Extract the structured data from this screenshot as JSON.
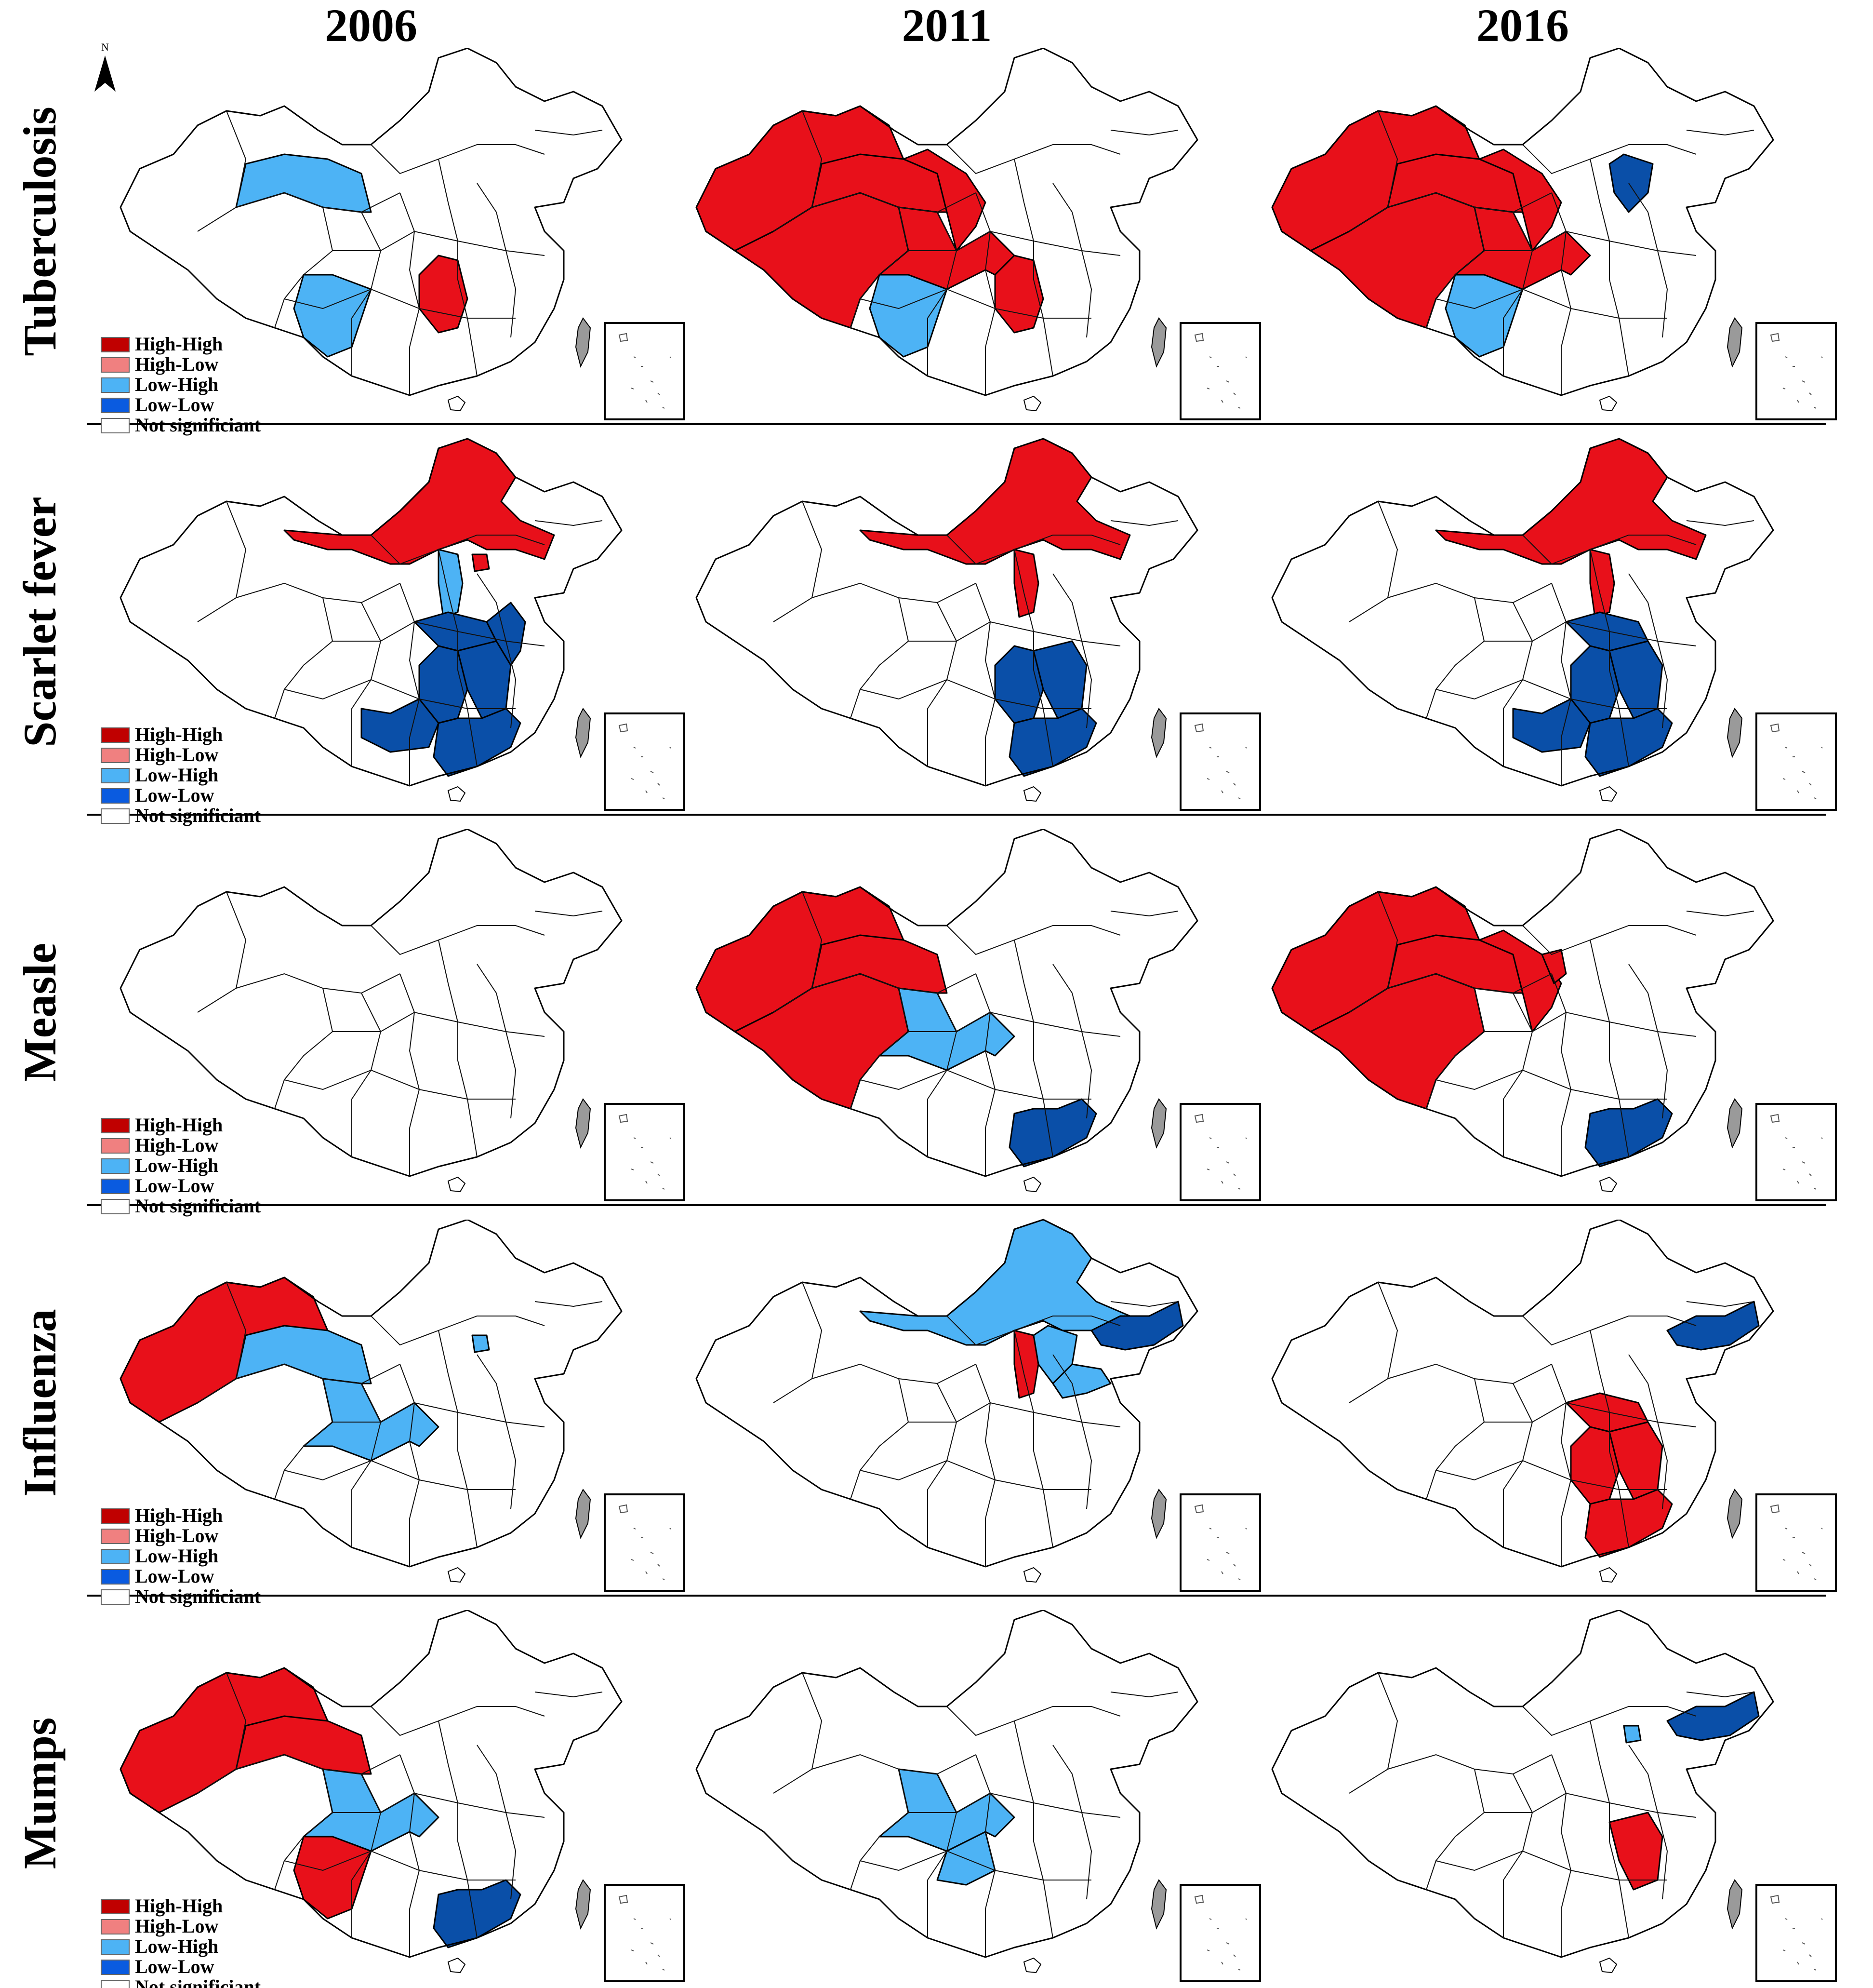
{
  "years": [
    "2006",
    "2011",
    "2016"
  ],
  "diseases": [
    "Tuberculosis",
    "Scarlet fever",
    "Measle",
    "Influenza",
    "Mumps"
  ],
  "north_arrow": "N",
  "legend": [
    {
      "label": "High-High",
      "color": "#c00000"
    },
    {
      "label": "High-Low",
      "color": "#f08080"
    },
    {
      "label": "Low-High",
      "color": "#4db3f5"
    },
    {
      "label": "Low-Low",
      "color": "#0a5be0"
    },
    {
      "label": "Not significiant",
      "color": "#ffffff"
    }
  ],
  "map_colors": {
    "hh": "#e8101a",
    "lh": "#4db3f5",
    "ll": "#0a4fa8",
    "taiwan": "#9a9a9a"
  },
  "clusters": [
    [
      [
        {
          "province": "Qinghai",
          "class": "lh"
        },
        {
          "province": "Yunnan",
          "class": "lh"
        },
        {
          "province": "Hunan",
          "class": "hh"
        }
      ],
      [
        {
          "province": "Xinjiang",
          "class": "hh"
        },
        {
          "province": "Tibet",
          "class": "hh"
        },
        {
          "province": "Qinghai",
          "class": "hh"
        },
        {
          "province": "Gansu",
          "class": "hh"
        },
        {
          "province": "Sichuan",
          "class": "hh"
        },
        {
          "province": "Yunnan",
          "class": "lh"
        },
        {
          "province": "Hunan",
          "class": "hh"
        }
      ],
      [
        {
          "province": "Xinjiang",
          "class": "hh"
        },
        {
          "province": "Tibet",
          "class": "hh"
        },
        {
          "province": "Qinghai",
          "class": "hh"
        },
        {
          "province": "Gansu",
          "class": "hh"
        },
        {
          "province": "Sichuan",
          "class": "hh"
        },
        {
          "province": "Yunnan",
          "class": "lh"
        },
        {
          "province": "Hebei",
          "class": "ll"
        }
      ]
    ],
    [
      [
        {
          "province": "Inner Mongolia",
          "class": "hh"
        },
        {
          "province": "Shanxi",
          "class": "lh"
        },
        {
          "province": "Beijing",
          "class": "hh"
        },
        {
          "province": "Hubei",
          "class": "ll"
        },
        {
          "province": "Anhui",
          "class": "ll"
        },
        {
          "province": "Hunan",
          "class": "ll"
        },
        {
          "province": "Jiangxi",
          "class": "ll"
        },
        {
          "province": "Guangxi",
          "class": "ll"
        },
        {
          "province": "Guangdong",
          "class": "ll"
        }
      ],
      [
        {
          "province": "Inner Mongolia",
          "class": "hh"
        },
        {
          "province": "Shanxi",
          "class": "hh"
        },
        {
          "province": "Hunan",
          "class": "ll"
        },
        {
          "province": "Jiangxi",
          "class": "ll"
        },
        {
          "province": "Guangdong",
          "class": "ll"
        }
      ],
      [
        {
          "province": "Inner Mongolia",
          "class": "hh"
        },
        {
          "province": "Shanxi",
          "class": "hh"
        },
        {
          "province": "Hubei",
          "class": "ll"
        },
        {
          "province": "Hunan",
          "class": "ll"
        },
        {
          "province": "Jiangxi",
          "class": "ll"
        },
        {
          "province": "Guangxi",
          "class": "ll"
        },
        {
          "province": "Guangdong",
          "class": "ll"
        }
      ]
    ],
    [
      [],
      [
        {
          "province": "Xinjiang",
          "class": "hh"
        },
        {
          "province": "Tibet",
          "class": "hh"
        },
        {
          "province": "Qinghai",
          "class": "hh"
        },
        {
          "province": "Sichuan",
          "class": "lh"
        },
        {
          "province": "Guangdong",
          "class": "ll"
        }
      ],
      [
        {
          "province": "Xinjiang",
          "class": "hh"
        },
        {
          "province": "Tibet",
          "class": "hh"
        },
        {
          "province": "Qinghai",
          "class": "hh"
        },
        {
          "province": "Gansu",
          "class": "hh"
        },
        {
          "province": "Ningxia",
          "class": "hh"
        },
        {
          "province": "Guangdong",
          "class": "ll"
        }
      ]
    ],
    [
      [
        {
          "province": "Xinjiang",
          "class": "hh"
        },
        {
          "province": "Qinghai",
          "class": "lh"
        },
        {
          "province": "Sichuan",
          "class": "lh"
        },
        {
          "province": "Beijing",
          "class": "lh"
        }
      ],
      [
        {
          "province": "Inner Mongolia",
          "class": "lh"
        },
        {
          "province": "Jilin",
          "class": "ll"
        },
        {
          "province": "Shanxi",
          "class": "hh"
        },
        {
          "province": "Hebei",
          "class": "lh"
        },
        {
          "province": "Shandong",
          "class": "lh"
        }
      ],
      [
        {
          "province": "Jilin",
          "class": "ll"
        },
        {
          "province": "Hubei",
          "class": "hh"
        },
        {
          "province": "Hunan",
          "class": "hh"
        },
        {
          "province": "Jiangxi",
          "class": "hh"
        },
        {
          "province": "Guangdong",
          "class": "hh"
        }
      ]
    ],
    [
      [
        {
          "province": "Xinjiang",
          "class": "hh"
        },
        {
          "province": "Qinghai",
          "class": "hh"
        },
        {
          "province": "Sichuan",
          "class": "lh"
        },
        {
          "province": "Yunnan",
          "class": "hh"
        },
        {
          "province": "Guangdong",
          "class": "ll"
        }
      ],
      [
        {
          "province": "Sichuan",
          "class": "lh"
        },
        {
          "province": "Guizhou",
          "class": "lh"
        }
      ],
      [
        {
          "province": "Jilin",
          "class": "ll"
        },
        {
          "province": "Beijing",
          "class": "lh"
        },
        {
          "province": "Jiangxi",
          "class": "hh"
        }
      ]
    ]
  ]
}
